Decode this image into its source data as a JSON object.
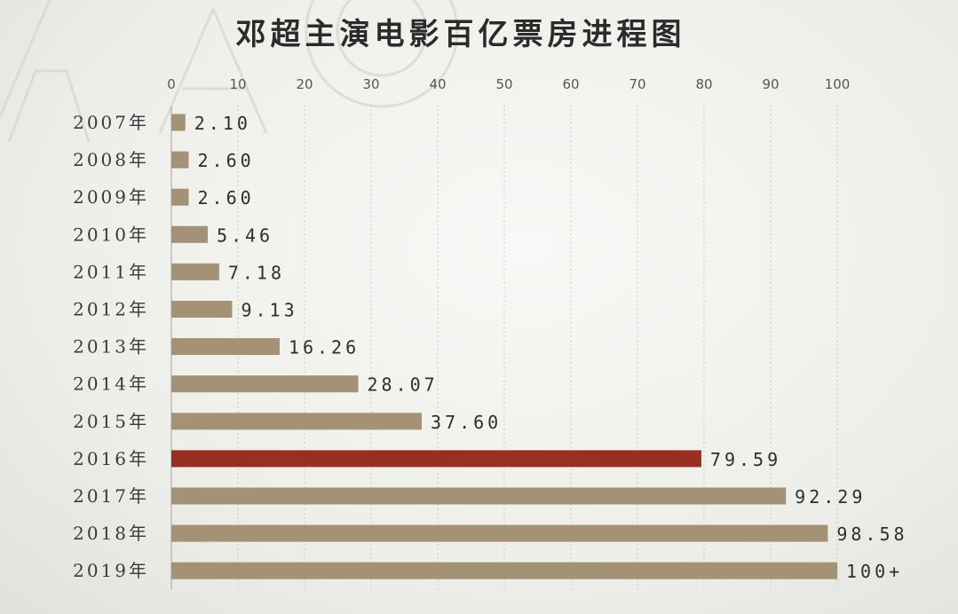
{
  "chart_data": {
    "type": "bar",
    "orientation": "horizontal",
    "title": "邓超主演电影百亿票房进程图",
    "categories": [
      "2007年",
      "2008年",
      "2009年",
      "2010年",
      "2011年",
      "2012年",
      "2013年",
      "2014年",
      "2015年",
      "2016年",
      "2017年",
      "2018年",
      "2019年"
    ],
    "values": [
      2.1,
      2.6,
      2.6,
      5.46,
      7.18,
      9.13,
      16.26,
      28.07,
      37.6,
      79.59,
      92.29,
      98.58,
      100
    ],
    "value_labels": [
      "2.10",
      "2.60",
      "2.60",
      "5.46",
      "7.18",
      "9.13",
      "16.26",
      "28.07",
      "37.60",
      "79.59",
      "92.29",
      "98.58",
      "100+"
    ],
    "xlim": [
      0,
      100
    ],
    "x_ticks": [
      "0",
      "10",
      "20",
      "30",
      "40",
      "50",
      "60",
      "70",
      "80",
      "90",
      "100"
    ],
    "x_tick_values": [
      0,
      10,
      20,
      30,
      40,
      50,
      60,
      70,
      80,
      90,
      100
    ],
    "grid": true,
    "axis_position": "top",
    "colors": {
      "bar": "#a39276",
      "highlight_bar": "#972f22",
      "highlight_index": 9
    }
  }
}
